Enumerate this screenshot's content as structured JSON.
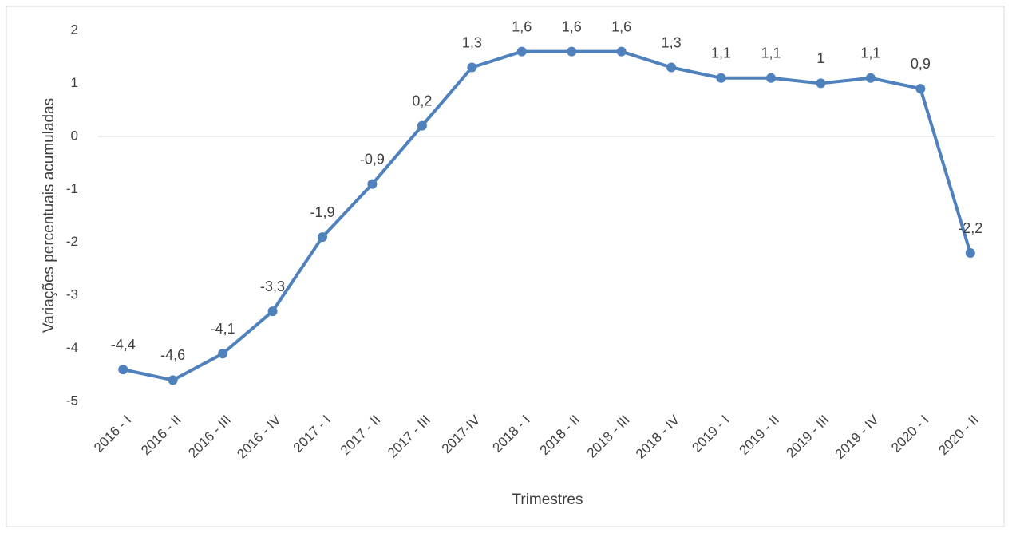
{
  "chart_data": {
    "type": "line",
    "x_label": "Trimestres",
    "y_label": "Variações  percentuais acumuladas",
    "categories": [
      "2016 - I",
      "2016 - II",
      "2016 - III",
      "2016 - IV",
      "2017 - I",
      "2017 - II",
      "2017 - III",
      "2017-IV",
      "2018 - I",
      "2018 - II",
      "2018 - III",
      "2018 - IV",
      "2019 - I",
      "2019 - II",
      "2019 - III",
      "2019 - IV",
      "2020 - I",
      "2020 - II"
    ],
    "series": [
      {
        "name": "Variações percentuais acumuladas",
        "color": "#4f81bd",
        "values": [
          -4.4,
          -4.6,
          -4.1,
          -3.3,
          -1.9,
          -0.9,
          0.2,
          1.3,
          1.6,
          1.6,
          1.6,
          1.3,
          1.1,
          1.1,
          1,
          1.1,
          0.9,
          -2.2
        ],
        "value_labels": [
          "-4,4",
          "-4,6",
          "-4,1",
          "-3,3",
          "-1,9",
          "-0,9",
          "0,2",
          "1,3",
          "1,6",
          "1,6",
          "1,6",
          "1,3",
          "1,1",
          "1,1",
          "1",
          "1,1",
          "0,9",
          "-2,2"
        ]
      }
    ],
    "ylim": [
      -5,
      2
    ],
    "yticks": [
      -5,
      -4,
      -3,
      -2,
      -1,
      0,
      1,
      2
    ],
    "grid": false
  }
}
